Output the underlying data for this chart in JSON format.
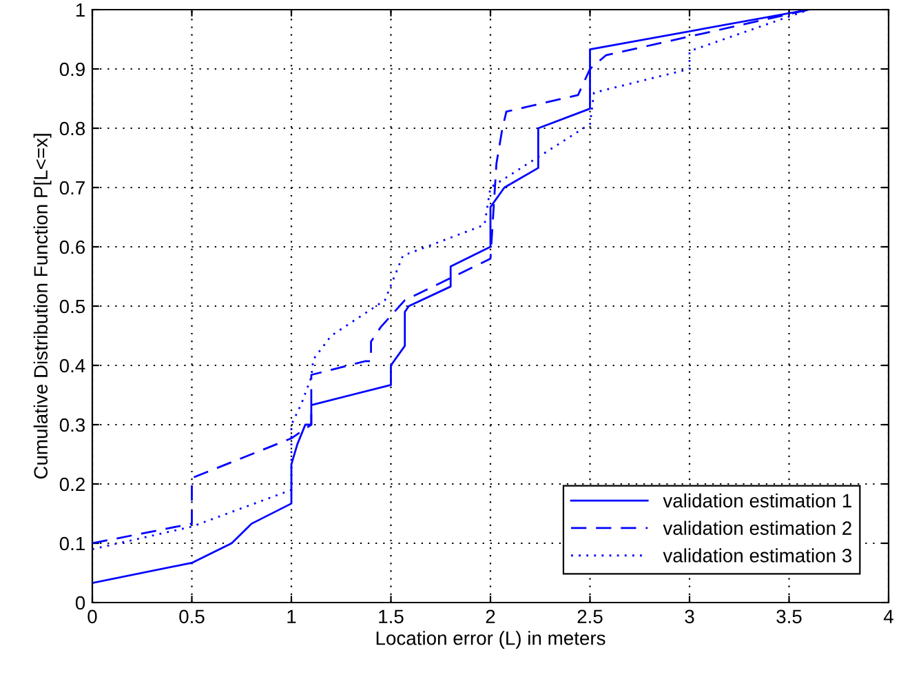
{
  "chart_data": {
    "type": "line",
    "xlabel": "Location error (L) in meters",
    "ylabel": "Cumulative Distribution Function P[L<=x]",
    "xlim": [
      0,
      4
    ],
    "ylim": [
      0,
      1
    ],
    "xticks": [
      0,
      0.5,
      1,
      1.5,
      2,
      2.5,
      3,
      3.5,
      4
    ],
    "yticks": [
      0,
      0.1,
      0.2,
      0.3,
      0.4,
      0.5,
      0.6,
      0.7,
      0.8,
      0.9,
      1
    ],
    "grid": true,
    "legend": "bottom right",
    "series": [
      {
        "name": "validation estimation 1",
        "color": "#0000ff",
        "line_style": "solid",
        "x": [
          0,
          0.5,
          0.7,
          0.8,
          1,
          1,
          1.03,
          1.07,
          1.1,
          1.1,
          1.5,
          1.5,
          1.57,
          1.57,
          1.59,
          1.8,
          1.8,
          2,
          2,
          2.07,
          2.24,
          2.24,
          2.5,
          2.5,
          3.6
        ],
        "values": [
          0.033,
          0.067,
          0.1,
          0.133,
          0.167,
          0.233,
          0.267,
          0.3,
          0.3,
          0.333,
          0.367,
          0.4,
          0.433,
          0.49,
          0.5,
          0.533,
          0.567,
          0.6,
          0.667,
          0.7,
          0.733,
          0.8,
          0.833,
          0.933,
          1
        ]
      },
      {
        "name": "validation estimation 2",
        "color": "#0000ff",
        "line_style": "dashed",
        "x": [
          0,
          0.5,
          0.5,
          1,
          1.1,
          1.1,
          1.37,
          1.4,
          1.4,
          1.45,
          1.57,
          2,
          2.03,
          2.06,
          2.08,
          2.44,
          2.5,
          2.58,
          3.6
        ],
        "values": [
          0.1,
          0.133,
          0.21,
          0.277,
          0.3,
          0.384,
          0.407,
          0.407,
          0.44,
          0.465,
          0.51,
          0.58,
          0.74,
          0.8,
          0.828,
          0.856,
          0.9,
          0.923,
          1
        ]
      },
      {
        "name": "validation estimation 3",
        "color": "#0000ff",
        "line_style": "dotted",
        "x": [
          0,
          0.5,
          1,
          1,
          1.05,
          1.1,
          1.11,
          1.2,
          1.47,
          1.56,
          1.97,
          2,
          2.5,
          2.52,
          3,
          3,
          3.6
        ],
        "values": [
          0.09,
          0.128,
          0.19,
          0.3,
          0.335,
          0.38,
          0.41,
          0.45,
          0.51,
          0.585,
          0.637,
          0.7,
          0.807,
          0.86,
          0.9,
          0.93,
          1
        ]
      }
    ]
  }
}
